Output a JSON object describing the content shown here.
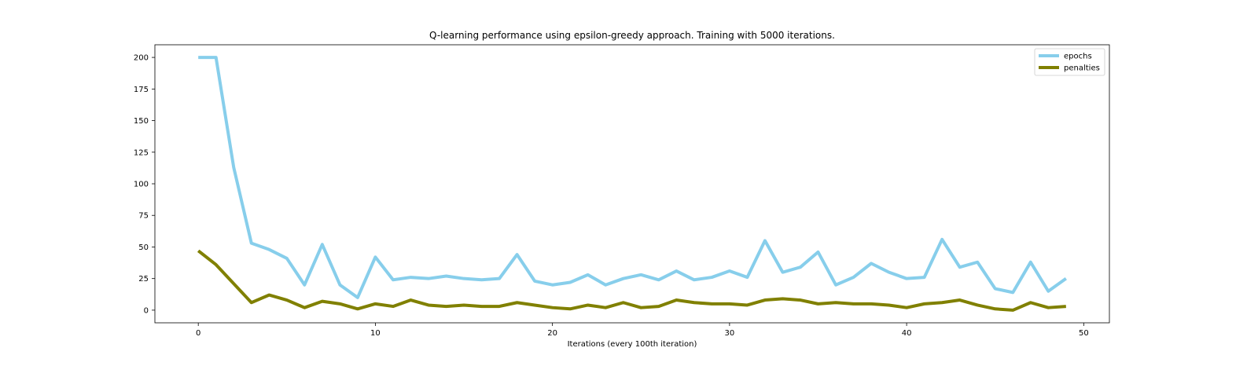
{
  "chart_data": {
    "type": "line",
    "title": "Q-learning performance using epsilon-greedy approach. Training with 5000 iterations.",
    "xlabel": "Iterations (every 100th iteration)",
    "ylabel": "",
    "xlim": [
      -2.45,
      51.45
    ],
    "ylim": [
      -10,
      210
    ],
    "xticks": [
      0,
      10,
      20,
      30,
      40,
      50
    ],
    "yticks": [
      0,
      25,
      50,
      75,
      100,
      125,
      150,
      175,
      200
    ],
    "legend_position": "top-right",
    "grid": false,
    "x": [
      0,
      1,
      2,
      3,
      4,
      5,
      6,
      7,
      8,
      9,
      10,
      11,
      12,
      13,
      14,
      15,
      16,
      17,
      18,
      19,
      20,
      21,
      22,
      23,
      24,
      25,
      26,
      27,
      28,
      29,
      30,
      31,
      32,
      33,
      34,
      35,
      36,
      37,
      38,
      39,
      40,
      41,
      42,
      43,
      44,
      45,
      46,
      47,
      48,
      49
    ],
    "series": [
      {
        "name": "epochs",
        "color": "#87ceeb",
        "values": [
          200,
          200,
          113,
          53,
          48,
          41,
          20,
          52,
          20,
          10,
          42,
          24,
          26,
          25,
          27,
          25,
          24,
          25,
          44,
          23,
          20,
          22,
          28,
          20,
          25,
          28,
          24,
          31,
          24,
          26,
          31,
          26,
          55,
          30,
          34,
          46,
          20,
          26,
          37,
          30,
          25,
          26,
          56,
          34,
          38,
          17,
          14,
          38,
          15,
          25
        ]
      },
      {
        "name": "penalties",
        "color": "#808000",
        "values": [
          47,
          36,
          21,
          6,
          12,
          8,
          2,
          7,
          5,
          1,
          5,
          3,
          8,
          4,
          3,
          4,
          3,
          3,
          6,
          4,
          2,
          1,
          4,
          2,
          6,
          2,
          3,
          8,
          6,
          5,
          5,
          4,
          8,
          9,
          8,
          5,
          6,
          5,
          5,
          4,
          2,
          5,
          6,
          8,
          4,
          1,
          0,
          6,
          2,
          3
        ]
      }
    ]
  }
}
